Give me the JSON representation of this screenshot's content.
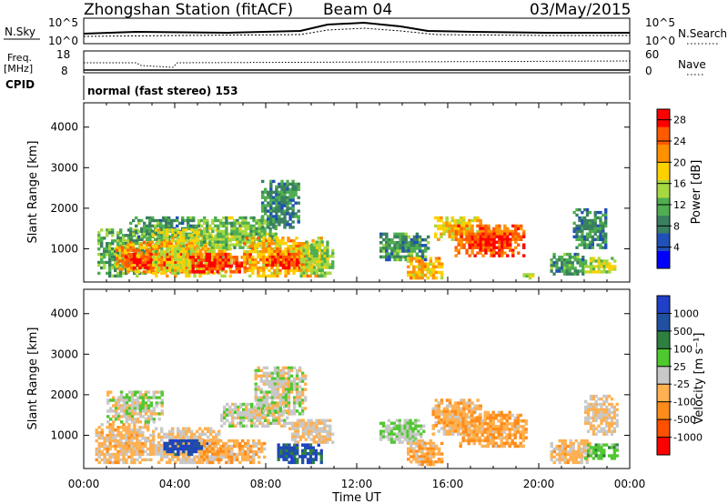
{
  "header": {
    "station": "Zhongshan Station (fitACF)",
    "beam": "Beam 04",
    "date": "03/May/2015"
  },
  "top_panels": {
    "nsky_label": "N.Sky",
    "nsearch_label": "N.Search",
    "noise_tick_top": "10^5",
    "noise_tick_bottom": "10^0",
    "noise_right_top": "10^5",
    "noise_right_bottom": "10^0",
    "freq_label": "Freq.",
    "freq_unit": "[MHz]",
    "freq_ticks": [
      "18",
      "8"
    ],
    "nave_label": "Nave",
    "nave_ticks": [
      "60",
      "0"
    ],
    "cpid_label": "CPID",
    "cpid_text": "normal (fast stereo) 153"
  },
  "colors": {
    "power_scale": [
      "#0000ff",
      "#2050b8",
      "#3a8060",
      "#4fae50",
      "#a8d840",
      "#ffd000",
      "#ff9000",
      "#ff5a00",
      "#ff0000"
    ],
    "velocity_scale": [
      "#ff0000",
      "#ff5000",
      "#ff8c1a",
      "#ffb050",
      "#c8c8c8",
      "#50c830",
      "#2e8040",
      "#2050a0",
      "#2040c8"
    ]
  },
  "chart_data": [
    {
      "type": "heatmap",
      "name": "power",
      "ylabel": "Slant Range [km]",
      "xlabel": "",
      "x_ticks": [
        "00:00",
        "04:00",
        "08:00",
        "12:00",
        "16:00",
        "20:00",
        "00:00"
      ],
      "y_ticks": [
        "1000",
        "2000",
        "3000",
        "4000"
      ],
      "ylim": [
        180,
        4600
      ],
      "xlim_hours": [
        0,
        24
      ],
      "colorbar_label": "Power [dB]",
      "colorbar_ticks": [
        "4",
        "8",
        "12",
        "16",
        "20",
        "24",
        "28"
      ],
      "colorbar_range": [
        0,
        30
      ],
      "regions": [
        {
          "t": [
            0.6,
            3.0
          ],
          "r": [
            300,
            1500
          ],
          "v": 12
        },
        {
          "t": [
            1.4,
            5.2
          ],
          "r": [
            400,
            1200
          ],
          "v": 22
        },
        {
          "t": [
            1.8,
            4.6
          ],
          "r": [
            500,
            900
          ],
          "v": 27
        },
        {
          "t": [
            2.0,
            5.0
          ],
          "r": [
            1200,
            1800
          ],
          "v": 10
        },
        {
          "t": [
            3.0,
            6.5
          ],
          "r": [
            300,
            1500
          ],
          "v": 17
        },
        {
          "t": [
            4.5,
            7.5
          ],
          "r": [
            400,
            900
          ],
          "v": 26
        },
        {
          "t": [
            5.0,
            8.5
          ],
          "r": [
            1000,
            1800
          ],
          "v": 13
        },
        {
          "t": [
            7.0,
            10.5
          ],
          "r": [
            300,
            1300
          ],
          "v": 20
        },
        {
          "t": [
            8.0,
            9.8
          ],
          "r": [
            500,
            900
          ],
          "v": 27
        },
        {
          "t": [
            7.8,
            9.5
          ],
          "r": [
            1500,
            2700
          ],
          "v": 9
        },
        {
          "t": [
            9.5,
            11.0
          ],
          "r": [
            300,
            1200
          ],
          "v": 14
        },
        {
          "t": [
            13.0,
            15.2
          ],
          "r": [
            700,
            1400
          ],
          "v": 10
        },
        {
          "t": [
            14.2,
            15.8
          ],
          "r": [
            250,
            800
          ],
          "v": 20
        },
        {
          "t": [
            15.4,
            17.5
          ],
          "r": [
            1200,
            1800
          ],
          "v": 18
        },
        {
          "t": [
            16.3,
            19.4
          ],
          "r": [
            800,
            1600
          ],
          "v": 24
        },
        {
          "t": [
            16.8,
            18.8
          ],
          "r": [
            1000,
            1400
          ],
          "v": 27
        },
        {
          "t": [
            19.3,
            19.8
          ],
          "r": [
            250,
            400
          ],
          "v": 14
        },
        {
          "t": [
            20.5,
            22.0
          ],
          "r": [
            350,
            900
          ],
          "v": 10
        },
        {
          "t": [
            21.5,
            23.0
          ],
          "r": [
            1000,
            2000
          ],
          "v": 9
        },
        {
          "t": [
            22.0,
            23.4
          ],
          "r": [
            400,
            800
          ],
          "v": 15
        }
      ]
    },
    {
      "type": "heatmap",
      "name": "velocity",
      "ylabel": "Slant Range [km]",
      "xlabel": "Time UT",
      "x_ticks": [
        "00:00",
        "04:00",
        "08:00",
        "12:00",
        "16:00",
        "20:00",
        "00:00"
      ],
      "y_ticks": [
        "1000",
        "2000",
        "3000",
        "4000"
      ],
      "ylim": [
        180,
        4600
      ],
      "xlim_hours": [
        0,
        24
      ],
      "colorbar_label": "Velocity [m s⁻¹]",
      "colorbar_ticks": [
        "1000",
        "500",
        "100",
        "25",
        "-25",
        "-100",
        "-500",
        "-1000"
      ],
      "colorbar_range": [
        -1200,
        1200
      ],
      "regions": [
        {
          "t": [
            0.5,
            3.0
          ],
          "r": [
            300,
            1300
          ],
          "v": -200
        },
        {
          "t": [
            1.0,
            3.5
          ],
          "r": [
            1300,
            2100
          ],
          "v": 0
        },
        {
          "t": [
            3.0,
            6.0
          ],
          "r": [
            300,
            1200
          ],
          "v": -150
        },
        {
          "t": [
            3.5,
            5.5
          ],
          "r": [
            500,
            900
          ],
          "v": 900
        },
        {
          "t": [
            5.0,
            8.0
          ],
          "r": [
            300,
            900
          ],
          "v": -300
        },
        {
          "t": [
            6.0,
            9.0
          ],
          "r": [
            1200,
            1800
          ],
          "v": 10
        },
        {
          "t": [
            7.5,
            9.8
          ],
          "r": [
            1500,
            2700
          ],
          "v": 5
        },
        {
          "t": [
            8.5,
            10.5
          ],
          "r": [
            300,
            800
          ],
          "v": 800
        },
        {
          "t": [
            9.0,
            11.0
          ],
          "r": [
            800,
            1400
          ],
          "v": -120
        },
        {
          "t": [
            13.0,
            15.0
          ],
          "r": [
            800,
            1400
          ],
          "v": 150
        },
        {
          "t": [
            14.2,
            15.8
          ],
          "r": [
            250,
            900
          ],
          "v": -300
        },
        {
          "t": [
            15.3,
            17.5
          ],
          "r": [
            1000,
            1900
          ],
          "v": -250
        },
        {
          "t": [
            16.5,
            19.5
          ],
          "r": [
            700,
            1600
          ],
          "v": -350
        },
        {
          "t": [
            20.5,
            22.3
          ],
          "r": [
            300,
            900
          ],
          "v": -200
        },
        {
          "t": [
            22.0,
            23.5
          ],
          "r": [
            1000,
            2000
          ],
          "v": -150
        },
        {
          "t": [
            22.0,
            23.5
          ],
          "r": [
            400,
            800
          ],
          "v": 300
        }
      ]
    }
  ]
}
